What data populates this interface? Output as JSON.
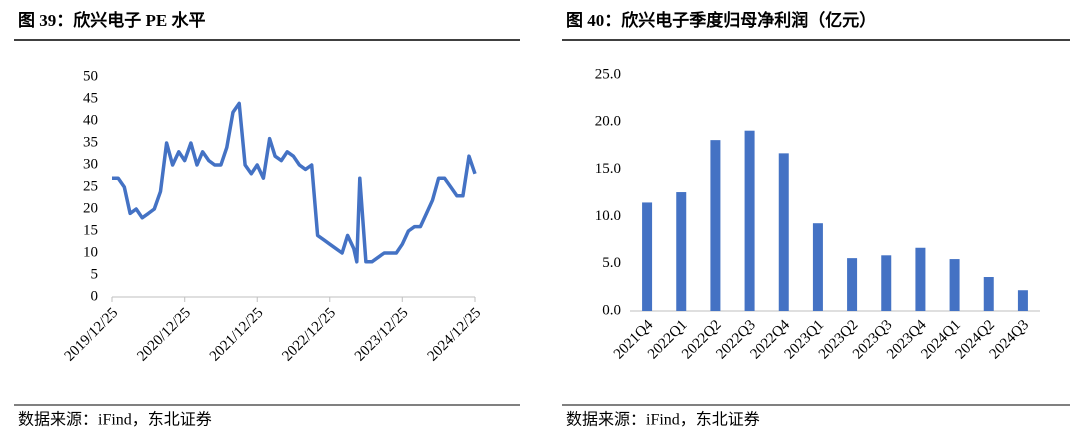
{
  "chart_data": [
    {
      "type": "line",
      "title": "图 39：欣兴电子 PE 水平",
      "source": "数据来源：iFind，东北证券",
      "color": "#4472c4",
      "x": [
        "2019/12/25",
        "2020/01/25",
        "2020/02/25",
        "2020/03/25",
        "2020/04/25",
        "2020/05/25",
        "2020/06/25",
        "2020/07/25",
        "2020/08/25",
        "2020/09/25",
        "2020/10/25",
        "2020/11/25",
        "2020/12/25",
        "2021/01/25",
        "2021/02/25",
        "2021/03/25",
        "2021/04/25",
        "2021/05/25",
        "2021/06/25",
        "2021/07/25",
        "2021/08/25",
        "2021/09/25",
        "2021/10/25",
        "2021/11/25",
        "2021/12/25",
        "2022/01/25",
        "2022/02/25",
        "2022/03/25",
        "2022/04/25",
        "2022/05/25",
        "2022/06/25",
        "2022/07/25",
        "2022/08/25",
        "2022/09/25",
        "2022/10/25",
        "2022/11/25",
        "2022/12/25",
        "2023/01/25",
        "2023/02/25",
        "2023/03/25",
        "2023/04/25",
        "2023/05/10",
        "2023/05/25",
        "2023/06/25",
        "2023/07/25",
        "2023/08/25",
        "2023/09/25",
        "2023/10/25",
        "2023/11/25",
        "2023/12/25",
        "2024/01/25",
        "2024/02/25",
        "2024/03/25",
        "2024/04/25",
        "2024/05/25",
        "2024/06/25",
        "2024/07/25",
        "2024/08/25",
        "2024/09/25",
        "2024/10/25",
        "2024/11/25",
        "2024/12/25"
      ],
      "values": [
        27,
        27,
        25,
        19,
        20,
        18,
        19,
        20,
        24,
        35,
        30,
        33,
        31,
        35,
        30,
        33,
        31,
        30,
        30,
        34,
        42,
        44,
        30,
        28,
        30,
        27,
        36,
        32,
        31,
        33,
        32,
        30,
        29,
        30,
        14,
        13,
        12,
        11,
        10,
        14,
        11,
        8,
        27,
        8,
        8,
        9,
        10,
        10,
        10,
        12,
        15,
        16,
        16,
        19,
        22,
        27,
        27,
        25,
        23,
        23,
        32,
        28
      ],
      "xlim": [
        "2019/12/25",
        "2024/12/25"
      ],
      "xticks": [
        "2019/12/25",
        "2020/12/25",
        "2021/12/25",
        "2022/12/25",
        "2023/12/25",
        "2024/12/25"
      ],
      "ylim": [
        0,
        50
      ],
      "yticks": [
        0,
        5,
        10,
        15,
        20,
        25,
        30,
        35,
        40,
        45,
        50
      ]
    },
    {
      "type": "bar",
      "title": "图 40：欣兴电子季度归母净利润（亿元）",
      "source": "数据来源：iFind，东北证券",
      "color": "#4472c4",
      "categories": [
        "2021Q4",
        "2022Q1",
        "2022Q2",
        "2022Q3",
        "2022Q4",
        "2023Q1",
        "2023Q2",
        "2023Q3",
        "2023Q4",
        "2024Q1",
        "2024Q2",
        "2024Q3"
      ],
      "values": [
        11.5,
        12.6,
        18.1,
        19.1,
        16.7,
        9.3,
        5.6,
        5.9,
        6.7,
        5.5,
        3.6,
        2.2
      ],
      "ylim": [
        0,
        25
      ],
      "yticks": [
        {
          "value": 0,
          "label": "0.0"
        },
        {
          "value": 5,
          "label": "5.0"
        },
        {
          "value": 10,
          "label": "10.0"
        },
        {
          "value": 15,
          "label": "15.0"
        },
        {
          "value": 20,
          "label": "20.0"
        },
        {
          "value": 25,
          "label": "25.0"
        }
      ]
    }
  ]
}
